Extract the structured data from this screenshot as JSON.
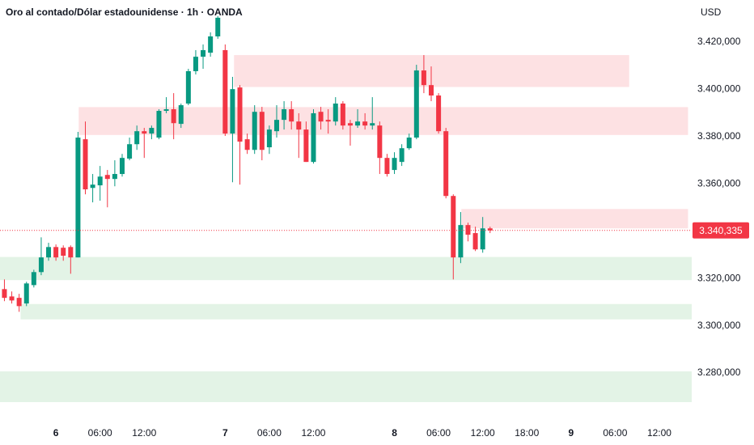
{
  "chart_data": {
    "type": "candlestick",
    "title": "Oro al contado/Dólar estadounidense · 1h · OANDA",
    "currency": "USD",
    "up_color": "#089981",
    "down_color": "#f23645",
    "x": [
      -7,
      -6,
      -5,
      -4,
      -3,
      -2,
      -1,
      0,
      1,
      2,
      3,
      4,
      5,
      6,
      7,
      8,
      9,
      10,
      11,
      12,
      13,
      14,
      15,
      16,
      17,
      18,
      19,
      20,
      21,
      22,
      23,
      24,
      25,
      26,
      27,
      28,
      29,
      30,
      31,
      32,
      33,
      34,
      35,
      36,
      37,
      38,
      39,
      40,
      41,
      42,
      43,
      44,
      45,
      46,
      47,
      48,
      49,
      50,
      51,
      52,
      53,
      54,
      55,
      56,
      57,
      58,
      59
    ],
    "open": [
      3315.5,
      3312.4,
      3311.8,
      3309.4,
      3317.2,
      3322.7,
      3328.9,
      3333.3,
      3333.0,
      3333.3,
      3328.9,
      3378.9,
      3358.3,
      3359.4,
      3363.8,
      3362.1,
      3364.2,
      3370.7,
      3376.8,
      3382.3,
      3381.3,
      3379.6,
      3390.9,
      3391.6,
      3385.4,
      3394.0,
      3407.7,
      3413.8,
      3415.5,
      3422.4,
      3416.6,
      3381.3,
      3400.8,
      3378.9,
      3374.4,
      3390.5,
      3375.5,
      3382.3,
      3387.1,
      3391.6,
      3386.4,
      3383.0,
      3369.3,
      3390.5,
      3387.1,
      3386.4,
      3394.0,
      3385.7,
      3384.7,
      3386.4,
      3384.7,
      3384.7,
      3371.0,
      3365.9,
      3369.3,
      3375.1,
      3379.6,
      3408.0,
      3401.8,
      3397.4,
      3382.3,
      3354.9,
      3328.9,
      3342.6,
      3339.2,
      3332.3,
      3341.2
    ],
    "high": [
      3319.6,
      3314.5,
      3313.5,
      3318.6,
      3323.7,
      3337.4,
      3335.1,
      3334.4,
      3334.0,
      3334.0,
      3382.0,
      3386.4,
      3364.2,
      3367.6,
      3365.9,
      3370.0,
      3372.7,
      3379.6,
      3384.7,
      3383.7,
      3384.7,
      3391.6,
      3396.7,
      3398.4,
      3394.0,
      3408.7,
      3416.6,
      3419.0,
      3424.1,
      3431.0,
      3419.0,
      3405.3,
      3401.8,
      3381.3,
      3393.3,
      3392.6,
      3384.7,
      3393.3,
      3395.0,
      3395.0,
      3389.9,
      3386.4,
      3391.6,
      3392.6,
      3391.6,
      3396.7,
      3395.0,
      3387.1,
      3391.6,
      3389.9,
      3396.7,
      3386.4,
      3372.7,
      3373.4,
      3376.8,
      3381.3,
      3410.4,
      3414.5,
      3409.7,
      3398.4,
      3383.7,
      3355.6,
      3348.1,
      3343.6,
      3341.9,
      3346.0,
      3341.9
    ],
    "low": [
      3310.4,
      3309.4,
      3305.9,
      3308.3,
      3316.2,
      3321.4,
      3327.5,
      3327.5,
      3327.5,
      3322.0,
      3328.9,
      3355.6,
      3352.2,
      3352.9,
      3350.1,
      3359.0,
      3363.1,
      3370.0,
      3374.4,
      3371.0,
      3378.9,
      3378.9,
      3389.9,
      3378.9,
      3383.7,
      3393.3,
      3406.3,
      3408.7,
      3413.8,
      3421.4,
      3380.3,
      3360.7,
      3359.7,
      3372.7,
      3372.7,
      3370.0,
      3372.7,
      3379.6,
      3383.0,
      3383.0,
      3371.0,
      3369.3,
      3368.6,
      3383.0,
      3381.3,
      3384.7,
      3383.0,
      3376.2,
      3383.7,
      3383.0,
      3383.0,
      3364.2,
      3363.1,
      3364.2,
      3367.6,
      3374.4,
      3378.9,
      3398.4,
      3395.0,
      3381.3,
      3353.9,
      3319.6,
      3326.5,
      3335.7,
      3331.6,
      3330.9,
      3339.2
    ],
    "close": [
      3311.8,
      3310.7,
      3308.3,
      3317.9,
      3322.7,
      3328.9,
      3333.3,
      3328.9,
      3329.6,
      3328.9,
      3379.6,
      3357.7,
      3359.7,
      3363.1,
      3362.1,
      3364.2,
      3371.0,
      3376.8,
      3382.3,
      3381.3,
      3383.7,
      3390.9,
      3391.6,
      3385.7,
      3393.3,
      3407.7,
      3413.8,
      3416.6,
      3422.4,
      3430.3,
      3381.3,
      3400.1,
      3377.9,
      3374.4,
      3390.5,
      3374.4,
      3383.0,
      3387.1,
      3391.6,
      3386.4,
      3383.0,
      3369.3,
      3389.9,
      3386.4,
      3386.4,
      3394.0,
      3384.7,
      3384.7,
      3386.4,
      3384.7,
      3385.7,
      3371.0,
      3364.2,
      3371.0,
      3375.1,
      3379.6,
      3408.0,
      3401.8,
      3397.4,
      3382.3,
      3354.9,
      3328.9,
      3342.6,
      3338.5,
      3332.3,
      3341.2,
      3340.335
    ],
    "last_price_label": "3.340,335",
    "zones": [
      {
        "xmin": 24.2,
        "xmax": 77.9,
        "ymin": 3401.0,
        "ymax": 3414.5,
        "color": "#fde1e3"
      },
      {
        "xmin": 3.1,
        "xmax": 85.9,
        "ymin": 3380.7,
        "ymax": 3392.5,
        "color": "#fde1e3"
      },
      {
        "xmin": 55.1,
        "xmax": 85.9,
        "ymin": 3341.2,
        "ymax": 3349.4,
        "color": "#fde1e3"
      },
      {
        "xmin": -7.6,
        "xmax": 86.4,
        "ymin": 3319.3,
        "ymax": 3329.1,
        "color": "#e3f3e6"
      },
      {
        "xmin": -4.8,
        "xmax": 86.4,
        "ymin": 3302.7,
        "ymax": 3309.2,
        "color": "#e3f3e6"
      },
      {
        "xmin": -7.6,
        "xmax": 86.4,
        "ymin": 3267.7,
        "ymax": 3280.7,
        "color": "#e3f3e6"
      }
    ],
    "xlim": [
      -7.6,
      86.4
    ],
    "ylim": [
      3256.4,
      3437.8
    ],
    "xticks": [
      {
        "value": 0,
        "label": "6"
      },
      {
        "value": 6,
        "label": "06:00"
      },
      {
        "value": 12,
        "label": "12:00"
      },
      {
        "value": 23,
        "label": "7"
      },
      {
        "value": 29,
        "label": "06:00"
      },
      {
        "value": 35,
        "label": "12:00"
      },
      {
        "value": 46,
        "label": "8"
      },
      {
        "value": 52,
        "label": "06:00"
      },
      {
        "value": 58,
        "label": "12:00"
      },
      {
        "value": 64,
        "label": "18:00"
      },
      {
        "value": 70,
        "label": "9"
      },
      {
        "value": 76,
        "label": "06:00"
      },
      {
        "value": 82,
        "label": "12:00"
      }
    ],
    "yticks": [
      {
        "value": 3280,
        "label": "3.280,000"
      },
      {
        "value": 3300,
        "label": "3.300,000"
      },
      {
        "value": 3320,
        "label": "3.320,000"
      },
      {
        "value": 3360,
        "label": "3.360,000"
      },
      {
        "value": 3380,
        "label": "3.380,000"
      },
      {
        "value": 3400,
        "label": "3.400,000"
      },
      {
        "value": 3420,
        "label": "3.420,000"
      }
    ],
    "grid": false
  }
}
